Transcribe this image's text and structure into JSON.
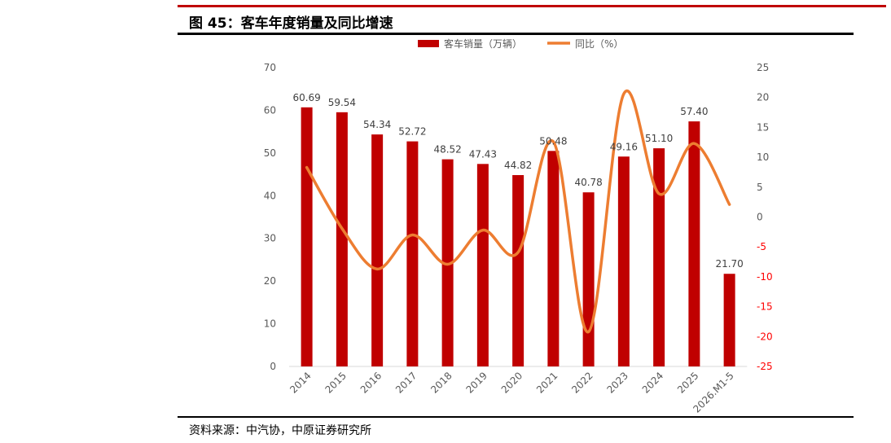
{
  "figure": {
    "title": "图 45：客车年度销量及同比增速",
    "source": "资料来源：中汽协，中原证券研究所"
  },
  "colors": {
    "bar": "#c00000",
    "line": "#ed7d31",
    "rule_top": "#c00000",
    "negative_tick": "#ff0000"
  },
  "chart_data": {
    "type": "bar",
    "categories": [
      "2014",
      "2015",
      "2016",
      "2017",
      "2018",
      "2019",
      "2020",
      "2021",
      "2022",
      "2023",
      "2024",
      "2025",
      "2026.M1-5"
    ],
    "series": [
      {
        "name": "客车销量（万辆）",
        "type": "bar",
        "axis": "left",
        "values": [
          60.69,
          59.54,
          54.34,
          52.72,
          48.52,
          47.43,
          44.82,
          50.48,
          40.78,
          49.16,
          51.1,
          57.4,
          21.7
        ],
        "labels": [
          "60.69",
          "59.54",
          "54.34",
          "52.72",
          "48.52",
          "47.43",
          "44.82",
          "50.48",
          "40.78",
          "49.16",
          "51.10",
          "57.40",
          "21.70"
        ]
      },
      {
        "name": "同比（%）",
        "type": "line",
        "axis": "right",
        "smooth": true,
        "values": [
          8.3,
          -1.9,
          -8.7,
          -3.0,
          -7.9,
          -2.2,
          -5.9,
          12.6,
          -19.2,
          20.6,
          3.9,
          12.3,
          2.1
        ]
      }
    ],
    "y_left": {
      "min": 0,
      "max": 70,
      "step": 10,
      "ticks": [
        "0",
        "10",
        "20",
        "30",
        "40",
        "50",
        "60",
        "70"
      ]
    },
    "y_right": {
      "min": -25,
      "max": 25,
      "step": 5,
      "ticks": [
        "-25",
        "-20",
        "-15",
        "-10",
        "-5",
        "0",
        "5",
        "10",
        "15",
        "20",
        "25"
      ]
    },
    "legend": {
      "position": "top"
    },
    "grid": false
  }
}
